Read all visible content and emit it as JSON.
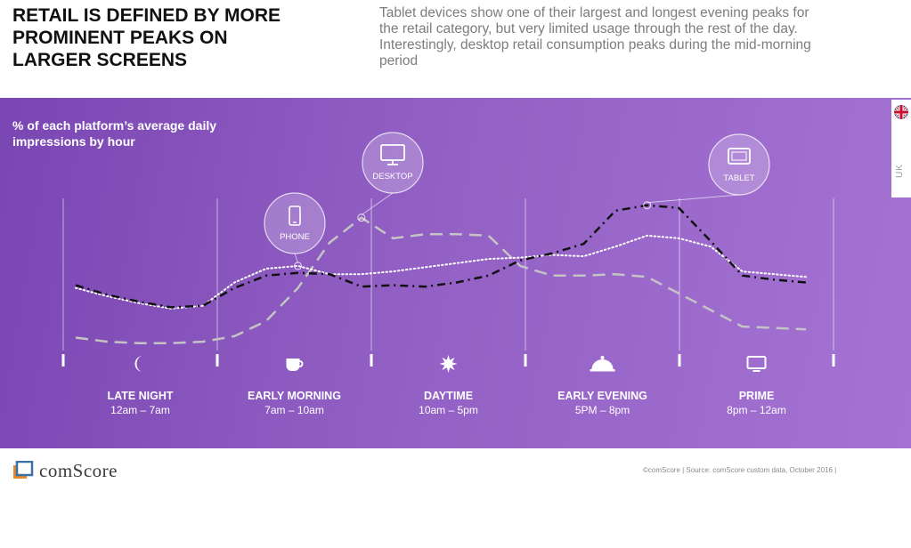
{
  "title": "RETAIL IS DEFINED BY MORE PROMINENT PEAKS ON LARGER SCREENS",
  "subtitle": "Tablet devices show one of their largest and longest evening peaks for the retail category, but very limited usage through the rest of the day. Interestingly, desktop retail consumption peaks during the mid-morning period",
  "logo_text": "comScore",
  "source": "©comScore  |  Source: comScore custom data, October 2016 |",
  "region_tab": "UK",
  "colors": {
    "panel_start": "#7a46b3",
    "panel_end": "#a573d3",
    "phone": "#ffffff",
    "desktop": "#c4c4c4",
    "tablet": "#111111"
  },
  "chart_data": {
    "type": "line",
    "ylabel": "% of each platform’s average daily impressions by hour",
    "x": [
      0,
      1,
      2,
      3,
      4,
      5,
      6,
      7,
      8,
      9,
      10,
      11,
      12,
      13,
      14,
      15,
      16,
      17,
      18,
      19,
      20,
      21,
      22,
      23
    ],
    "ylim": [
      0,
      100
    ],
    "grid": false,
    "legend": "callouts",
    "periods": [
      {
        "label": "LATE NIGHT",
        "time": "12am – 7am",
        "icon": "moon-icon"
      },
      {
        "label": "EARLY MORNING",
        "time": "7am – 10am",
        "icon": "coffee-cup-icon"
      },
      {
        "label": "DAYTIME",
        "time": "10am – 5pm",
        "icon": "sun-icon"
      },
      {
        "label": "EARLY EVENING",
        "time": "5PM – 8pm",
        "icon": "cloche-icon"
      },
      {
        "label": "PRIME",
        "time": "8pm – 12am",
        "icon": "tv-icon"
      }
    ],
    "series": [
      {
        "name": "PHONE",
        "style": "dotted",
        "icon": "phone-icon",
        "values": [
          46,
          40,
          35,
          31,
          33,
          50,
          60,
          62,
          56,
          56,
          58,
          61,
          64,
          67,
          68,
          70,
          69,
          76,
          84,
          82,
          76,
          58,
          56,
          54
        ]
      },
      {
        "name": "DESKTOP",
        "style": "dashed",
        "icon": "desktop-icon",
        "values": [
          10,
          7,
          6,
          6,
          7,
          11,
          22,
          46,
          79,
          97,
          82,
          85,
          85,
          84,
          62,
          55,
          55,
          56,
          54,
          42,
          30,
          18,
          17,
          16
        ]
      },
      {
        "name": "TABLET",
        "style": "dash-dot",
        "icon": "tablet-icon",
        "values": [
          48,
          41,
          36,
          32,
          33,
          46,
          55,
          57,
          56,
          47,
          48,
          47,
          50,
          55,
          66,
          71,
          78,
          102,
          106,
          104,
          80,
          55,
          52,
          50
        ]
      }
    ]
  }
}
